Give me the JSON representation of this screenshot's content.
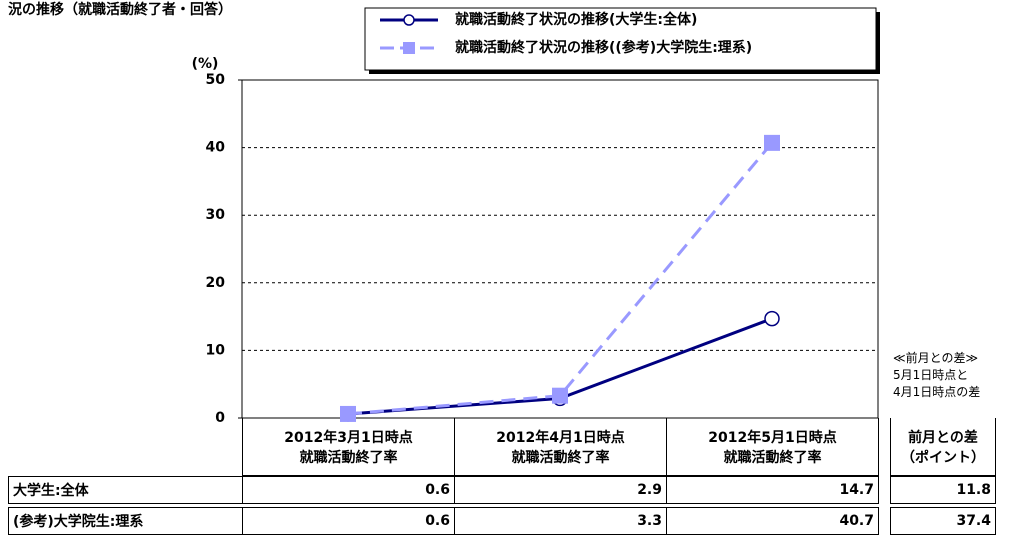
{
  "chart_data": {
    "type": "line",
    "title": "況の推移（就職活動終了者・回答）",
    "y_label": "(%)",
    "categories": [
      "2012年3月1日時点\n就職活動終了率",
      "2012年4月1日時点\n就職活動終了率",
      "2012年5月1日時点\n就職活動終了率"
    ],
    "ylim": [
      0,
      50
    ],
    "yticks": [
      0,
      10,
      20,
      30,
      40,
      50
    ],
    "grid": true,
    "series": [
      {
        "name": "就職活動終了状況の推移(大学生:全体)",
        "row_label": "大学生:全体",
        "color": "#000080",
        "marker": "circle",
        "dash": false,
        "values": [
          0.6,
          2.9,
          14.7
        ],
        "difference": 11.8
      },
      {
        "name": "就職活動終了状況の推移((参考)大学院生:理系)",
        "row_label": "(参考)大学院生:理系",
        "color": "#9999ff",
        "marker": "square",
        "dash": true,
        "values": [
          0.6,
          3.3,
          40.7
        ],
        "difference": 37.4
      }
    ],
    "difference_header": "前月との差\n（ポイント）",
    "note": "≪前月との差≫\n5月1日時点と\n4月1日時点の差"
  }
}
